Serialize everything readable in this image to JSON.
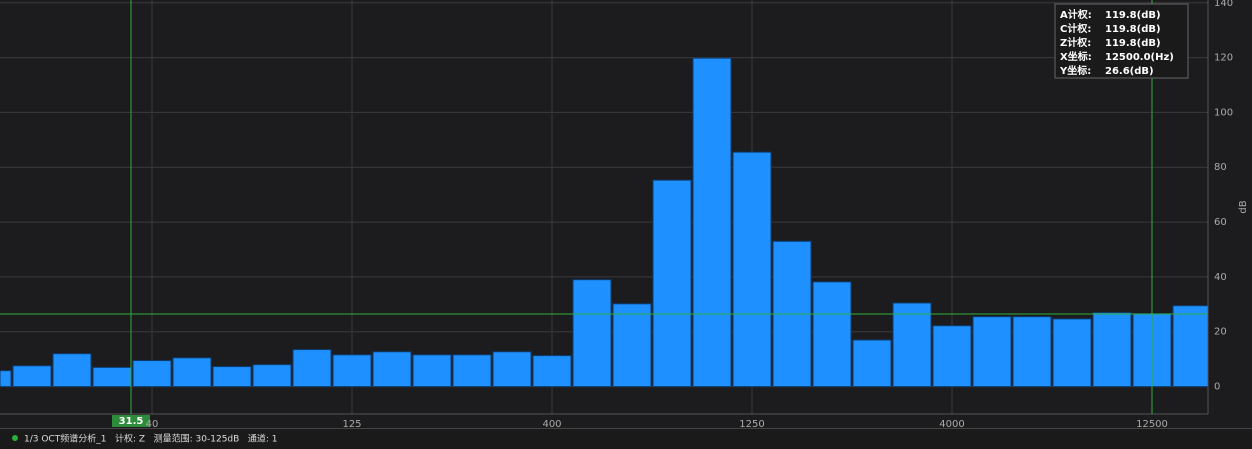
{
  "chart_data": {
    "type": "bar",
    "categories": [
      null,
      null,
      null,
      null,
      "40",
      null,
      null,
      null,
      null,
      "125",
      null,
      null,
      null,
      null,
      "400",
      null,
      null,
      null,
      null,
      "1250",
      null,
      null,
      null,
      null,
      "4000",
      null,
      null,
      null,
      null,
      "12500",
      null
    ],
    "values": [
      5.8,
      7.6,
      12,
      7,
      9.5,
      10.5,
      7.3,
      8,
      13.5,
      11.6,
      12.7,
      11.6,
      11.6,
      12.7,
      11.3,
      39,
      30.2,
      75.3,
      119.8,
      85.5,
      53,
      38.2,
      17,
      30.5,
      22.2,
      25.5,
      25.5,
      24.7,
      27,
      26.6,
      29.5
    ],
    "color": "#1e90ff",
    "ylim": [
      -10,
      141
    ],
    "yticks": [
      0,
      20,
      40,
      60,
      80,
      100,
      120,
      140
    ],
    "grid": true,
    "y_label": "dB",
    "cursor_marker": "31.5",
    "tooltip": [
      {
        "label": "A计权:",
        "value": "119.8(dB)"
      },
      {
        "label": "C计权:",
        "value": "119.8(dB)"
      },
      {
        "label": "Z计权:",
        "value": "119.8(dB)"
      },
      {
        "label": "X坐标:",
        "value": "12500.0(Hz)"
      },
      {
        "label": "Y坐标:",
        "value": "26.6(dB)"
      }
    ],
    "status": "1/3 OCT频谱分析_1   计权: Z   测量范围: 30-125dB   通道: 1"
  }
}
